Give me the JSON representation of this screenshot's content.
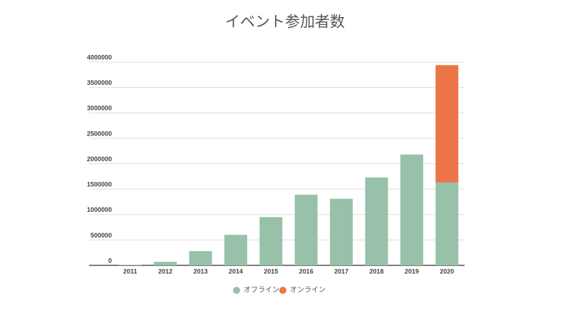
{
  "chart_data": {
    "type": "stacked-bar",
    "title": "イベント参加者数",
    "categories": [
      "2011",
      "2012",
      "2013",
      "2014",
      "2015",
      "2016",
      "2017",
      "2018",
      "2019",
      "2020"
    ],
    "series": [
      {
        "name": "オフライン",
        "color": "#97c1a9",
        "values": [
          10000,
          70000,
          280000,
          600000,
          950000,
          1390000,
          1310000,
          1730000,
          2180000,
          1630000
        ]
      },
      {
        "name": "オンライン",
        "color": "#ec7547",
        "values": [
          0,
          0,
          0,
          0,
          0,
          0,
          0,
          0,
          0,
          2310000
        ]
      }
    ],
    "ylim": [
      0,
      4000000
    ],
    "yticks": [
      0,
      500000,
      1000000,
      1500000,
      2000000,
      2500000,
      3000000,
      3500000,
      4000000
    ],
    "grid": true,
    "legend": "bottom"
  }
}
